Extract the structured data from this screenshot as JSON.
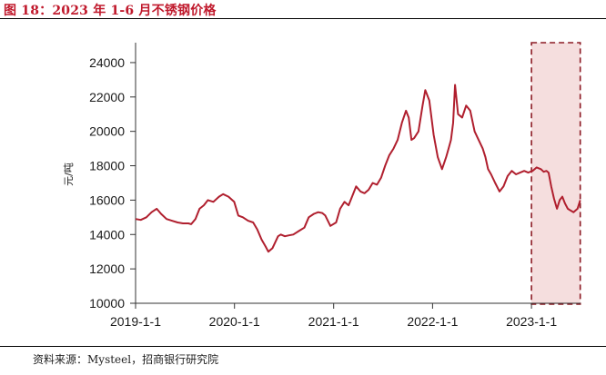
{
  "figure": {
    "title": "图 18：2023 年 1-6 月不锈钢价格",
    "source": "资料来源：Mysteel，招商银行研究院"
  },
  "colors": {
    "line": "#b01f2e",
    "highlight_fill": "#f5dede",
    "highlight_border": "#8c1a24",
    "title": "#c0192c"
  },
  "chart_data": {
    "type": "line",
    "title": "",
    "xlabel": "",
    "ylabel": "元/吨",
    "ylim": [
      10000,
      25000
    ],
    "xlim": [
      "2019-01-01",
      "2023-07-01"
    ],
    "yticks": [
      10000,
      12000,
      14000,
      16000,
      18000,
      20000,
      22000,
      24000
    ],
    "xticks": [
      {
        "label": "2019-1-1",
        "date": "2019-01-01"
      },
      {
        "label": "2020-1-1",
        "date": "2020-01-01"
      },
      {
        "label": "2021-1-1",
        "date": "2021-01-01"
      },
      {
        "label": "2022-1-1",
        "date": "2022-01-01"
      },
      {
        "label": "2023-1-1",
        "date": "2023-01-01"
      }
    ],
    "highlight_range": [
      "2023-01-01",
      "2023-06-30"
    ],
    "grid": false,
    "legend": "none",
    "series": [
      {
        "x": [
          "2019-01-01",
          "2019-01-20",
          "2019-02-10",
          "2019-03-01",
          "2019-03-20",
          "2019-04-05",
          "2019-04-25",
          "2019-05-15",
          "2019-06-05",
          "2019-06-25",
          "2019-07-15",
          "2019-07-25",
          "2019-08-10",
          "2019-08-25",
          "2019-09-10",
          "2019-09-25",
          "2019-10-15",
          "2019-11-05",
          "2019-11-20",
          "2019-12-10",
          "2019-12-31",
          "2020-01-15",
          "2020-02-01",
          "2020-02-20",
          "2020-03-10",
          "2020-03-25",
          "2020-04-10",
          "2020-04-25",
          "2020-05-05",
          "2020-05-20",
          "2020-06-10",
          "2020-06-20",
          "2020-07-05",
          "2020-07-20",
          "2020-08-05",
          "2020-08-25",
          "2020-09-15",
          "2020-10-01",
          "2020-10-20",
          "2020-11-05",
          "2020-11-20",
          "2020-12-01",
          "2020-12-20",
          "2021-01-10",
          "2021-01-25",
          "2021-02-10",
          "2021-02-25",
          "2021-03-10",
          "2021-03-25",
          "2021-04-10",
          "2021-04-25",
          "2021-05-10",
          "2021-05-25",
          "2021-06-10",
          "2021-06-25",
          "2021-07-10",
          "2021-07-25",
          "2021-08-10",
          "2021-08-25",
          "2021-09-10",
          "2021-09-25",
          "2021-10-05",
          "2021-10-15",
          "2021-10-25",
          "2021-11-10",
          "2021-11-25",
          "2021-12-05",
          "2021-12-20",
          "2022-01-05",
          "2022-01-20",
          "2022-02-05",
          "2022-02-20",
          "2022-03-01",
          "2022-03-10",
          "2022-03-18",
          "2022-03-25",
          "2022-04-05",
          "2022-04-20",
          "2022-05-05",
          "2022-05-20",
          "2022-06-05",
          "2022-06-20",
          "2022-07-05",
          "2022-07-15",
          "2022-07-25",
          "2022-08-05",
          "2022-08-20",
          "2022-09-05",
          "2022-09-20",
          "2022-10-05",
          "2022-10-20",
          "2022-11-05",
          "2022-11-20",
          "2022-12-05",
          "2022-12-20",
          "2023-01-05",
          "2023-01-20",
          "2023-02-05",
          "2023-02-15",
          "2023-02-25",
          "2023-03-05",
          "2023-03-15",
          "2023-03-25",
          "2023-04-05",
          "2023-04-15",
          "2023-04-25",
          "2023-05-05",
          "2023-05-15",
          "2023-05-25",
          "2023-06-05",
          "2023-06-20",
          "2023-06-30"
        ],
        "y": [
          14900,
          14850,
          15000,
          15300,
          15500,
          15200,
          14900,
          14800,
          14700,
          14650,
          14650,
          14600,
          14900,
          15500,
          15700,
          16000,
          15900,
          16200,
          16350,
          16200,
          15900,
          15100,
          15000,
          14800,
          14700,
          14300,
          13700,
          13300,
          13000,
          13200,
          13900,
          14000,
          13900,
          13950,
          14000,
          14200,
          14400,
          15000,
          15200,
          15300,
          15250,
          15100,
          14500,
          14700,
          15500,
          15900,
          15700,
          16200,
          16800,
          16500,
          16400,
          16600,
          17000,
          16900,
          17300,
          18000,
          18600,
          19000,
          19500,
          20500,
          21200,
          20800,
          19500,
          19600,
          20000,
          21500,
          22400,
          21800,
          19800,
          18500,
          17800,
          18500,
          19000,
          19500,
          20500,
          22700,
          21000,
          20800,
          21500,
          21200,
          20000,
          19500,
          19000,
          18500,
          17800,
          17500,
          17000,
          16500,
          16800,
          17400,
          17700,
          17500,
          17600,
          17700,
          17600,
          17700,
          17900,
          17800,
          17650,
          17700,
          17600,
          16800,
          16100,
          15500,
          16000,
          16200,
          15800,
          15500,
          15400,
          15300,
          15500,
          16000
        ]
      }
    ]
  }
}
